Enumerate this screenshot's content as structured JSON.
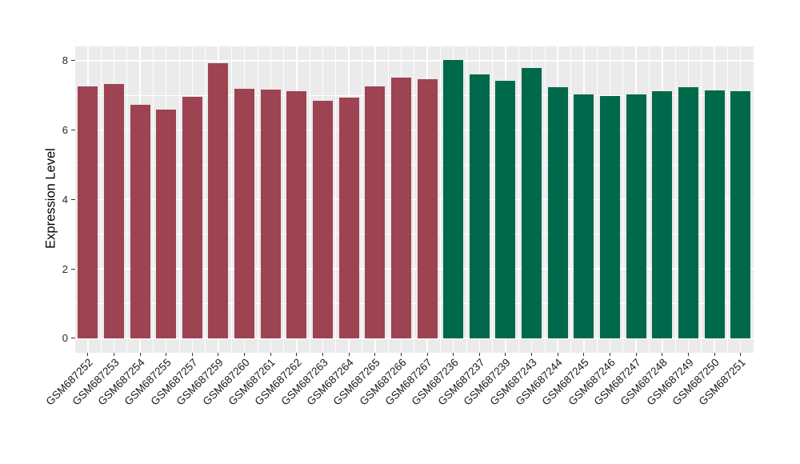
{
  "chart_data": {
    "type": "bar",
    "title": "",
    "xlabel": "",
    "ylabel": "Expression Level",
    "ylim": [
      0,
      8.4
    ],
    "yticks": [
      0,
      2,
      4,
      6,
      8
    ],
    "grid": "white major gridlines with thin minor gridlines on gray panel",
    "legend_position": "none",
    "panel_bg": "#EBEBEB",
    "grid_color": "#FFFFFF",
    "axis_text_color": "#262626",
    "series": [
      {
        "name": "left-group-maroon",
        "color": "#9D4352",
        "bars": [
          {
            "label": "GSM687252",
            "value": 7.26
          },
          {
            "label": "GSM687253",
            "value": 7.32
          },
          {
            "label": "GSM687254",
            "value": 6.74
          },
          {
            "label": "GSM687255",
            "value": 6.58
          },
          {
            "label": "GSM687257",
            "value": 6.97
          },
          {
            "label": "GSM687259",
            "value": 7.93
          },
          {
            "label": "GSM687260",
            "value": 7.2
          },
          {
            "label": "GSM687261",
            "value": 7.16
          },
          {
            "label": "GSM687262",
            "value": 7.13
          },
          {
            "label": "GSM687263",
            "value": 6.85
          },
          {
            "label": "GSM687264",
            "value": 6.94
          },
          {
            "label": "GSM687265",
            "value": 7.26
          },
          {
            "label": "GSM687266",
            "value": 7.52
          },
          {
            "label": "GSM687267",
            "value": 7.46
          }
        ]
      },
      {
        "name": "right-group-green",
        "color": "#00694B",
        "bars": [
          {
            "label": "GSM687236",
            "value": 8.03
          },
          {
            "label": "GSM687237",
            "value": 7.6
          },
          {
            "label": "GSM687239",
            "value": 7.42
          },
          {
            "label": "GSM687243",
            "value": 7.79
          },
          {
            "label": "GSM687244",
            "value": 7.23
          },
          {
            "label": "GSM687245",
            "value": 7.03
          },
          {
            "label": "GSM687246",
            "value": 6.99
          },
          {
            "label": "GSM687247",
            "value": 7.04
          },
          {
            "label": "GSM687248",
            "value": 7.12
          },
          {
            "label": "GSM687249",
            "value": 7.24
          },
          {
            "label": "GSM687250",
            "value": 7.15
          },
          {
            "label": "GSM687251",
            "value": 7.12
          }
        ]
      }
    ]
  }
}
